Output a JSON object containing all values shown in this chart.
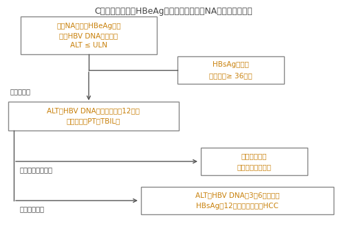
{
  "title": "C．肝硬化患者（HBeAg阴性或阳性）停用NA后建议随访方案",
  "title_color": "#444444",
  "title_fontsize": 9.0,
  "box_edge_color": "#888888",
  "box_face_color": "#ffffff",
  "arrow_color": "#555555",
  "text_color": "#c8800a",
  "label_color": "#444444",
  "box1_text_l1": "长期NA治疗，HBeAg阴性",
  "box1_text_l2": "血清HBV DNA检测不到",
  "box1_text_l3": "ALT ≤ ULN",
  "box2_text_l1": "HBsAg转阴或",
  "box2_text_l2": "巩固治疗≥ 36个月",
  "box3_text_l1": "ALT和HBV DNA每月复查直至12个月",
  "box3_text_l2": "（必要时查PT、TBIL）",
  "box4_text_l1": "重新开始治疗",
  "box4_text_l2": "（见再治疗标准）",
  "box5_text_l1": "ALT和HBV DNA每3～6个月复查",
  "box5_text_l2": "HBsAg每12个月复查，监测HCC",
  "label_stopvisit": "停药后随访",
  "label_relapse": "有临床意义的复发",
  "label_sustained": "维持持续应答"
}
